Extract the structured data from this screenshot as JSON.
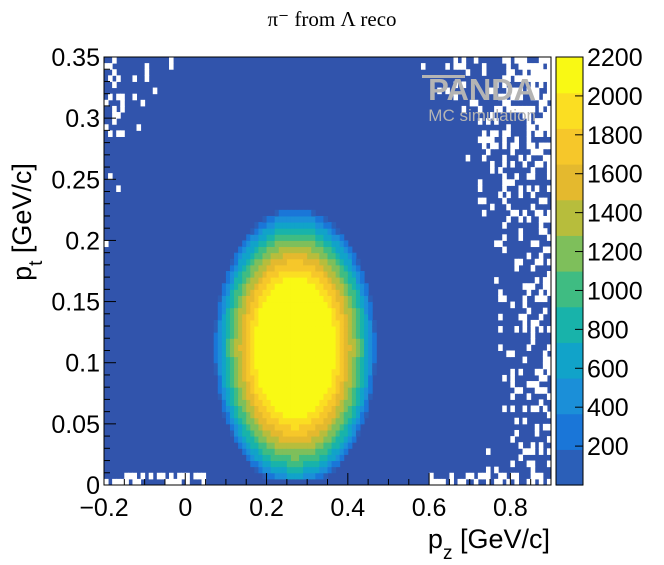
{
  "chart_data": {
    "type": "heatmap",
    "title": "π⁻ from Λ reco",
    "xlabel": "p_z [GeV/c]",
    "ylabel": "p_t [GeV/c]",
    "xlim": [
      -0.2,
      0.9
    ],
    "ylim": [
      0,
      0.35
    ],
    "x_ticks": [
      -0.2,
      0,
      0.2,
      0.4,
      0.6,
      0.8
    ],
    "x_tick_labels": [
      "−0.2",
      "0",
      "0.2",
      "0.4",
      "0.6",
      "0.8"
    ],
    "y_ticks": [
      0,
      0.05,
      0.1,
      0.15,
      0.2,
      0.25,
      0.3,
      0.35
    ],
    "y_tick_labels": [
      "0",
      "0.05",
      "0.1",
      "0.15",
      "0.2",
      "0.25",
      "0.3",
      "0.35"
    ],
    "z_range": [
      0,
      2200
    ],
    "colorbar_ticks": [
      200,
      400,
      600,
      800,
      1000,
      1200,
      1400,
      1600,
      1800,
      2000,
      2200
    ],
    "colorbar_colors": [
      "#2b5fb8",
      "#1a76d8",
      "#1b8fd8",
      "#11a3c9",
      "#18b3aa",
      "#3fbc82",
      "#7ebf5b",
      "#b7bd3c",
      "#e4b92e",
      "#f6c72a",
      "#fbde22",
      "#f9f914"
    ],
    "background_color": "#3154ac",
    "peak_region": {
      "pz_center": 0.2,
      "pt_center": 0.095,
      "approx_max_counts": 2200
    },
    "grid": false,
    "colorbar_position": "right"
  },
  "watermark": {
    "logo": "PANDA",
    "sub": "MC simulation"
  }
}
